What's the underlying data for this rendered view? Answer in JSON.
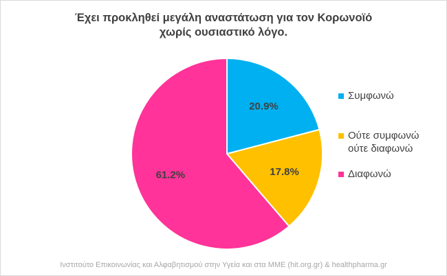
{
  "chart_data": {
    "type": "pie",
    "title_lines": [
      "Έχει προκληθεί μεγάλη αναστάτωση για τον Κορωνοϊό",
      "χωρίς ουσιαστικό λόγο."
    ],
    "slices": [
      {
        "name": "Συμφωνώ",
        "value": 20.9,
        "label": "20.9%",
        "color": "#00b0f0"
      },
      {
        "name": "Ούτε συμφωνώ ούτε διαφωνώ",
        "label": "17.8%",
        "value": 17.8,
        "color": "#ffc000"
      },
      {
        "name": "Διαφωνώ",
        "value": 61.2,
        "label": "61.2%",
        "color": "#ff3399"
      }
    ],
    "legend": [
      {
        "lines": [
          "Συμφωνώ"
        ],
        "color": "#00b0f0"
      },
      {
        "lines": [
          "Ούτε συμφωνώ",
          "ούτε διαφωνώ"
        ],
        "color": "#ffc000"
      },
      {
        "lines": [
          "Διαφωνώ"
        ],
        "color": "#ff3399"
      }
    ],
    "legend_position": "right"
  },
  "footer": "Ινστιτούτο Επικοινωνίας και Αλφαβητισμού στην Υγεία και στα ΜΜΕ (hit.org.gr) & healthpharma.gr"
}
